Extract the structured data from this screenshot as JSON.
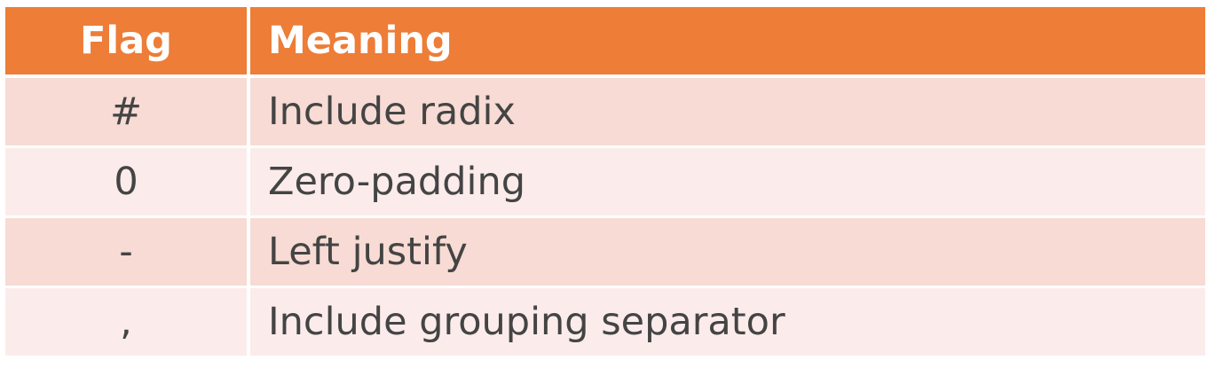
{
  "table": {
    "headers": {
      "flag": "Flag",
      "meaning": "Meaning"
    },
    "rows": [
      {
        "flag": "#",
        "meaning": "Include radix"
      },
      {
        "flag": "0",
        "meaning": "Zero-padding"
      },
      {
        "flag": "-",
        "meaning": "Left justify"
      },
      {
        "flag": ",",
        "meaning": "Include grouping separator"
      }
    ]
  },
  "colors": {
    "header_bg": "#ed7d37",
    "row_odd_bg": "#f7dbd4",
    "row_even_bg": "#fbeceb",
    "text": "#444444"
  }
}
